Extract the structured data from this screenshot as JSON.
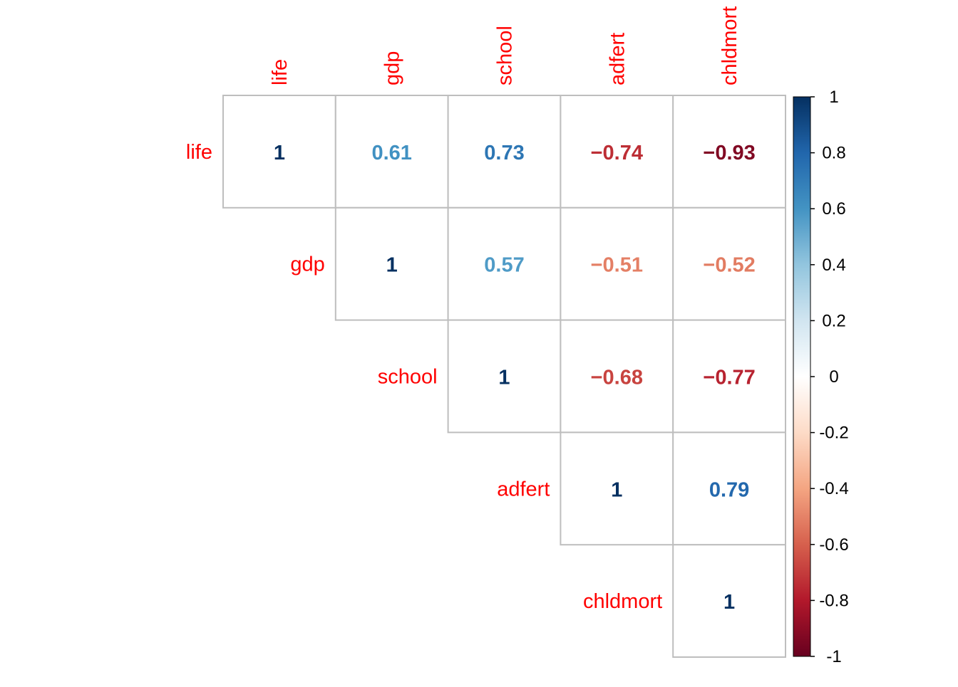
{
  "chart_data": {
    "type": "heatmap",
    "subtype": "correlation-matrix-upper",
    "title": "",
    "variables": [
      "life",
      "gdp",
      "school",
      "adfert",
      "chldmort"
    ],
    "matrix": [
      [
        1,
        0.61,
        0.73,
        -0.74,
        -0.93
      ],
      [
        0.61,
        1,
        0.57,
        -0.51,
        -0.52
      ],
      [
        0.73,
        0.57,
        1,
        -0.68,
        -0.77
      ],
      [
        -0.74,
        -0.51,
        -0.68,
        1,
        0.79
      ],
      [
        -0.93,
        -0.52,
        -0.77,
        0.79,
        1
      ]
    ],
    "value_labels": [
      [
        "1",
        "0.61",
        "0.73",
        "-0.74",
        "-0.93"
      ],
      [
        "",
        "1",
        "0.57",
        "-0.51",
        "-0.52"
      ],
      [
        "",
        "",
        "1",
        "-0.68",
        "-0.77"
      ],
      [
        "",
        "",
        "",
        "1",
        "0.79"
      ],
      [
        "",
        "",
        "",
        "",
        "1"
      ]
    ],
    "label_color": "#ff0000",
    "grid_color": "#bebebe",
    "colorbar": {
      "range": [
        -1,
        1
      ],
      "ticks": [
        "1",
        "0.8",
        "0.6",
        "0.4",
        "0.2",
        "0",
        "-0.2",
        "-0.4",
        "-0.6",
        "-0.8",
        "-1"
      ],
      "tick_values": [
        1,
        0.8,
        0.6,
        0.4,
        0.2,
        0,
        -0.2,
        -0.4,
        -0.6,
        -0.8,
        -1
      ],
      "colors": [
        "#67001f",
        "#b2182b",
        "#d6604d",
        "#f4a582",
        "#fddbc7",
        "#ffffff",
        "#d1e5f0",
        "#92c5de",
        "#4393c3",
        "#2166ac",
        "#053061"
      ]
    }
  }
}
